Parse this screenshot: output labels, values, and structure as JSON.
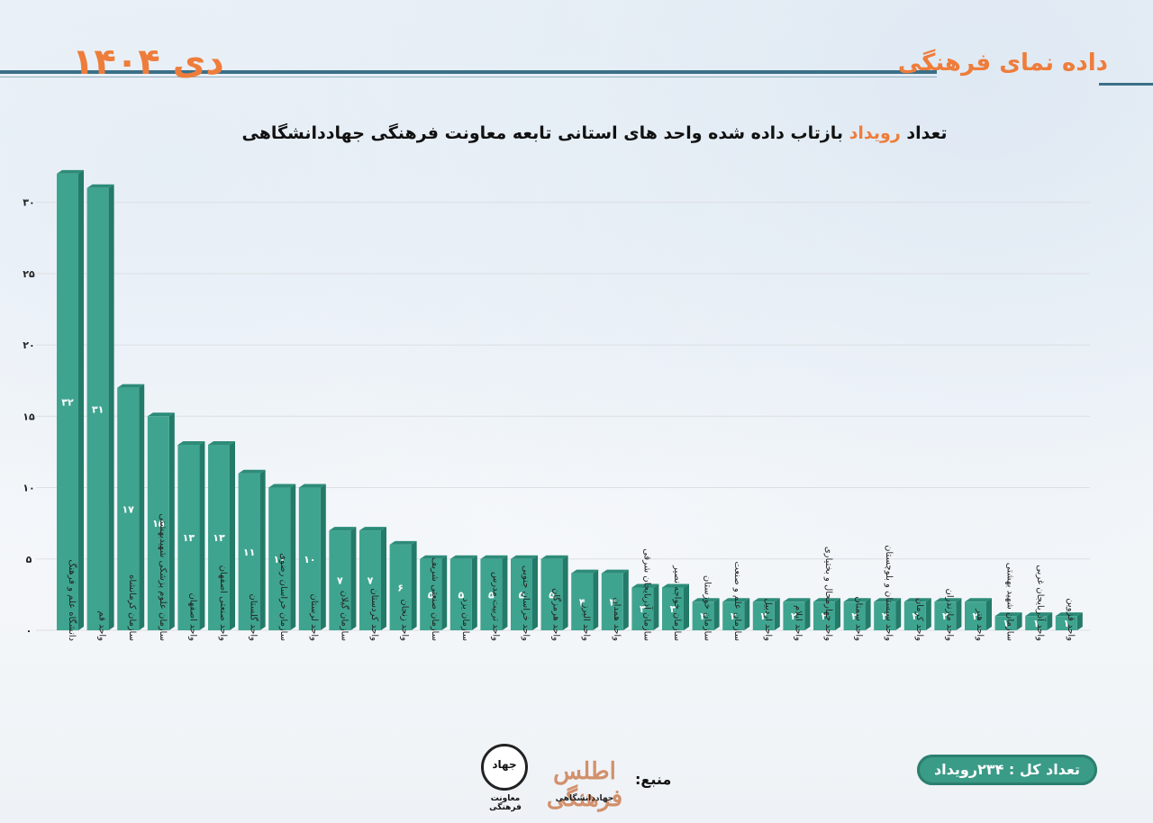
{
  "header": {
    "brand": "داده نمای فرهنگی",
    "month": "دی ۱۴۰۴"
  },
  "title": {
    "before": "تعداد ",
    "highlight": "رویداد",
    "after": " بازتاب داده شده واحد های استانی تابعه معاونت فرهنگی جهاددانشگاهی"
  },
  "total_label": "تعداد کل : ۲۳۴رویداد",
  "source_label": "منبع:",
  "logos": {
    "atlas_text": "اطلس فرهنگی",
    "atlas_sub": "جهاددانشگاهی",
    "jihad_text": "جهاد",
    "jihad_sub": "معاونت فرهنگی"
  },
  "colors": {
    "bar_front": "#3fa48f",
    "bar_side": "#237a68",
    "bar_top": "#2d8c79",
    "accent": "#ee7d3b",
    "grid": "#dcdfe4"
  },
  "chart_data": {
    "type": "bar",
    "categories": [
      "دانشگاه علم و فرهنگ",
      "واحد قم",
      "سازمان کرمانشاه",
      "سازمان علوم پزشکی شهیدبهشتی",
      "واحد اصفهان",
      "واحد صنعتی اصفهان",
      "واحد گلستان",
      "سازمان خراسان رضوی",
      "واحد لرستان",
      "سازمان گیلان",
      "واحد کردستان",
      "واحد زنجان",
      "سازمان صنعتی شریف",
      "سازمان یزد",
      "واحد تربیت مدرس",
      "واحد خراسان جنوبی",
      "واحد هرمزگان",
      "واحد البرز",
      "واحد همدان",
      "سازمان آذربایجان شرقی",
      "سازمان خواجه نصیر",
      "سازمان خوزستان",
      "سازمان علم و صنعت",
      "واحد اردبیل",
      "واحد ایلام",
      "واحد چهارمحال و بختیاری",
      "واحد سمنان",
      "واحد سیستان و بلوچستان",
      "واحد کرمان",
      "واحد مازندران",
      "واحد هنر",
      "سازمان شهید بهشتی",
      "واحد آذربایجان غربی",
      "واحد قزوین"
    ],
    "values": [
      32,
      31,
      17,
      15,
      13,
      13,
      11,
      10,
      10,
      7,
      7,
      6,
      5,
      5,
      5,
      5,
      5,
      4,
      4,
      3,
      3,
      2,
      2,
      2,
      2,
      2,
      2,
      2,
      2,
      2,
      2,
      1,
      1,
      1
    ],
    "value_labels": [
      "۳۲",
      "۳۱",
      "۱۷",
      "۱۵",
      "۱۳",
      "۱۳",
      "۱۱",
      "۱۰",
      "۱۰",
      "۷",
      "۷",
      "۶",
      "۵",
      "۵",
      "۵",
      "۵",
      "۵",
      "۴",
      "۴",
      "۳",
      "۳",
      "۲",
      "۲",
      "۲",
      "۲",
      "۲",
      "۲",
      "۲",
      "۲",
      "۲",
      "۲",
      "۱",
      "۱",
      "۱"
    ],
    "yticks": [
      0,
      5,
      10,
      15,
      20,
      25,
      30
    ],
    "ytick_labels": [
      "۰",
      "۵",
      "۱۰",
      "۱۵",
      "۲۰",
      "۲۵",
      "۳۰"
    ],
    "ylim": [
      0,
      32.5
    ],
    "grid": true
  }
}
